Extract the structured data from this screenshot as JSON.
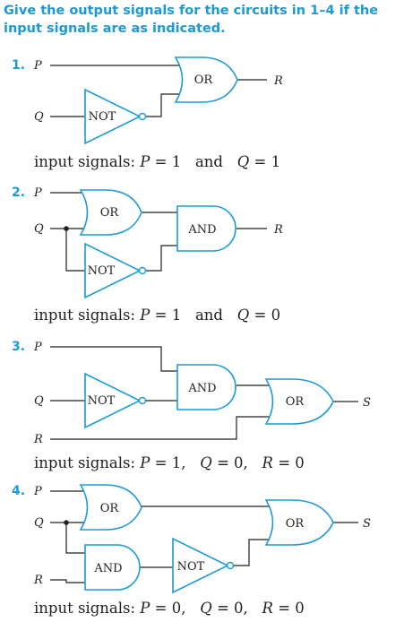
{
  "heading": "Give the output signals for the circuits in 1–4 if the input signals are as indicated.",
  "colors": {
    "accent": "#1b9ad6",
    "ink": "#231f20"
  },
  "circuits": [
    {
      "number": "1.",
      "inputs": [
        "P",
        "Q"
      ],
      "gates": [
        "OR",
        "NOT"
      ],
      "output": "R",
      "caption": {
        "prefix": "input signals: ",
        "a": "P",
        "a_val": " = 1   and   ",
        "b": "Q",
        "b_val": " = 1"
      }
    },
    {
      "number": "2.",
      "inputs": [
        "P",
        "Q"
      ],
      "gates": [
        "OR",
        "AND",
        "NOT"
      ],
      "output": "R",
      "caption": {
        "prefix": "input signals: ",
        "a": "P",
        "a_val": " = 1   and   ",
        "b": "Q",
        "b_val": " = 0"
      }
    },
    {
      "number": "3.",
      "inputs": [
        "P",
        "Q",
        "R"
      ],
      "gates": [
        "AND",
        "NOT",
        "OR"
      ],
      "output": "S",
      "caption": {
        "prefix": "input signals: ",
        "a": "P",
        "a_val": " = 1,   ",
        "b": "Q",
        "b_val": " = 0,   ",
        "c": "R",
        "c_val": " = 0"
      }
    },
    {
      "number": "4.",
      "inputs": [
        "P",
        "Q",
        "R"
      ],
      "gates": [
        "OR",
        "OR",
        "AND",
        "NOT"
      ],
      "output": "S",
      "caption": {
        "prefix": "input signals: ",
        "a": "P",
        "a_val": " = 0,   ",
        "b": "Q",
        "b_val": " = 0,   ",
        "c": "R",
        "c_val": " = 0"
      }
    }
  ]
}
